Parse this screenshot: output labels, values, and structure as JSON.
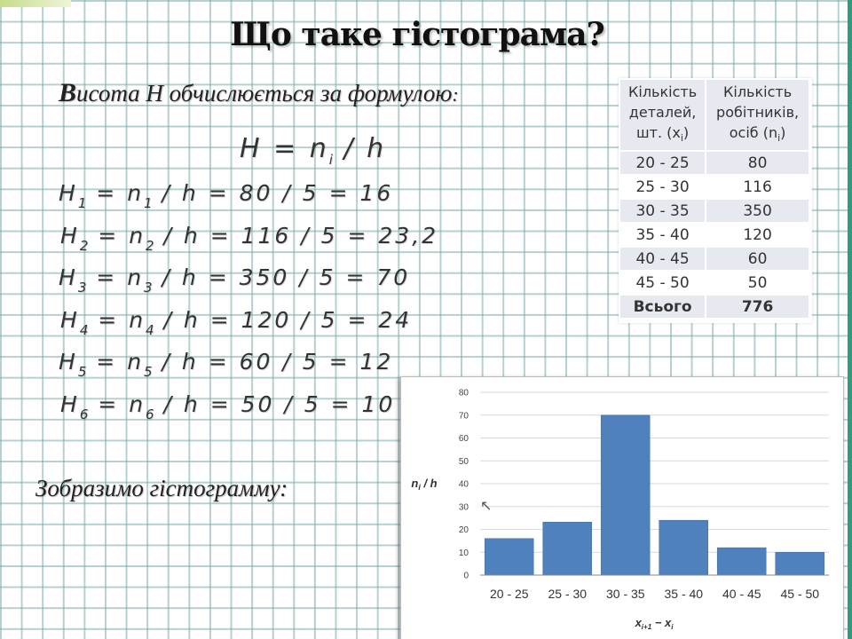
{
  "title": "Що таке гістограма?",
  "intro": {
    "lead": "В",
    "rest": "исота H обчислюється за формулою",
    "colon": ":"
  },
  "formula_main": {
    "lhs": "H",
    "var": "n",
    "sub": "i",
    "rhs": "/ h"
  },
  "formulas": [
    {
      "i": "1",
      "n": "80",
      "result": "16"
    },
    {
      "i": "2",
      "n": "116",
      "result": "23,2"
    },
    {
      "i": "3",
      "n": "350",
      "result": "70"
    },
    {
      "i": "4",
      "n": "120",
      "result": "24"
    },
    {
      "i": "5",
      "n": "60",
      "result": "12"
    },
    {
      "i": "6",
      "n": "50",
      "result": "10"
    }
  ],
  "formula_h_value": "5",
  "show_text": "Зобразимо гістограмму:",
  "table": {
    "col1_lines": [
      "Кількість",
      "деталей,",
      "шт. (x",
      "i",
      ")"
    ],
    "col2_lines": [
      "Кількість",
      "робітників,",
      "осіб (n",
      "i",
      ")"
    ],
    "rows": [
      {
        "range": "20 - 25",
        "count": "80"
      },
      {
        "range": "25 - 30",
        "count": "116"
      },
      {
        "range": "30 - 35",
        "count": "350"
      },
      {
        "range": "35 - 40",
        "count": "120"
      },
      {
        "range": "40 - 45",
        "count": "60"
      },
      {
        "range": "45 - 50",
        "count": "50"
      }
    ],
    "total_label": "Всього",
    "total_value": "776"
  },
  "chart_data": {
    "type": "bar",
    "categories": [
      "20 - 25",
      "25 - 30",
      "30 - 35",
      "35 - 40",
      "40 - 45",
      "45 - 50"
    ],
    "values": [
      16,
      23.2,
      70,
      24,
      12,
      10
    ],
    "xlabel": "xi+1 − xi",
    "xlabel_main": "x",
    "xlabel_sub1": "i+1",
    "xlabel_mid": " − x",
    "xlabel_sub2": "i",
    "ylabel": "ni / h",
    "ylabel_main": "n",
    "ylabel_sub": "i",
    "ylabel_rest": " / h",
    "ylim": [
      0,
      80
    ],
    "yticks": [
      "0",
      "10",
      "20",
      "30",
      "40",
      "50",
      "60",
      "70",
      "80"
    ],
    "grid": true,
    "bar_color": "#4f81bd",
    "grid_color": "#d9d9d9"
  },
  "colors": {
    "grid_lines": "#78aaaa",
    "accent_edge": "#2e9c7d"
  }
}
